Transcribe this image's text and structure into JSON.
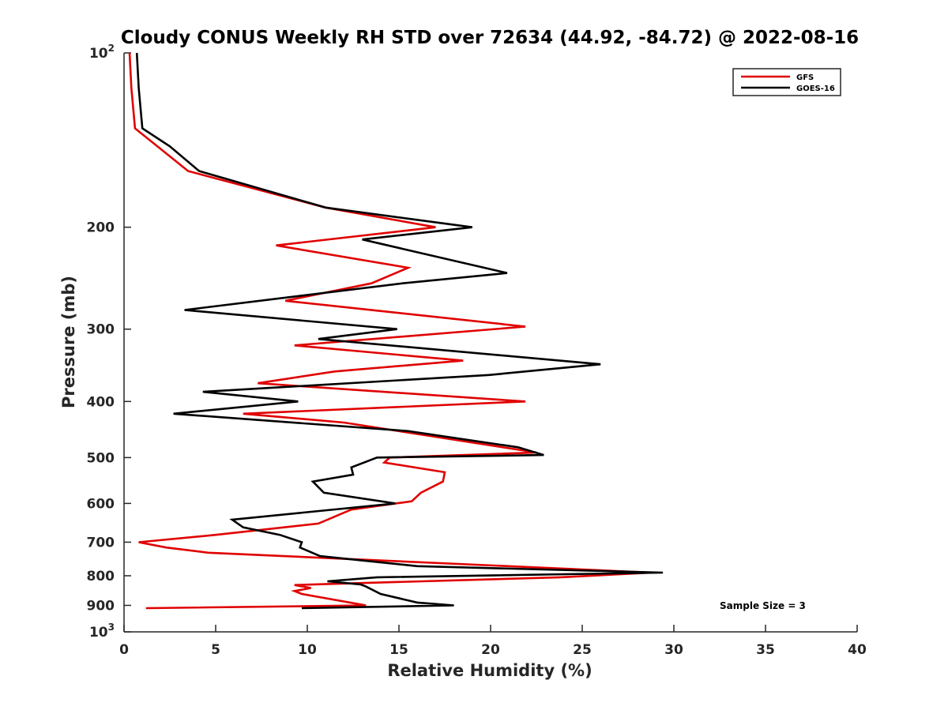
{
  "chart_data": {
    "type": "line",
    "title": "Cloudy CONUS Weekly RH STD over 72634 (44.92, -84.72) @ 2022-08-16",
    "xlabel": "Relative Humidity (%)",
    "ylabel": "Pressure (mb)",
    "xlim": [
      0,
      40
    ],
    "ylim": [
      100,
      1000
    ],
    "yscale": "log",
    "y_reversed": true,
    "grid": false,
    "legend_position": "top-right",
    "annotation": "Sample Size = 3",
    "x_ticks": [
      0,
      5,
      10,
      15,
      20,
      25,
      30,
      35,
      40
    ],
    "x_tick_labels": [
      "0",
      "5",
      "10",
      "15",
      "20",
      "25",
      "30",
      "35",
      "40"
    ],
    "y_ticks": [
      {
        "value": 100,
        "base": "10",
        "exp": "2"
      },
      {
        "value": 200,
        "label": "200"
      },
      {
        "value": 300,
        "label": "300"
      },
      {
        "value": 400,
        "label": "400"
      },
      {
        "value": 500,
        "label": "500"
      },
      {
        "value": 600,
        "label": "600"
      },
      {
        "value": 700,
        "label": "700"
      },
      {
        "value": 800,
        "label": "800"
      },
      {
        "value": 900,
        "label": "900"
      },
      {
        "value": 1000,
        "base": "10",
        "exp": "3"
      }
    ],
    "series": [
      {
        "name": "GFS",
        "color": "#e00000",
        "points": [
          [
            0.3,
            100
          ],
          [
            0.4,
            115
          ],
          [
            0.6,
            135
          ],
          [
            3.5,
            160
          ],
          [
            11,
            185
          ],
          [
            17,
            200
          ],
          [
            8.3,
            215
          ],
          [
            15.5,
            235
          ],
          [
            13.5,
            250
          ],
          [
            8.8,
            268
          ],
          [
            21.9,
            297
          ],
          [
            9.3,
            320
          ],
          [
            18.5,
            340
          ],
          [
            11.5,
            355
          ],
          [
            7.3,
            372
          ],
          [
            21.9,
            400
          ],
          [
            6.5,
            420
          ],
          [
            12,
            435
          ],
          [
            22.5,
            490
          ],
          [
            14.5,
            500
          ],
          [
            14.2,
            510
          ],
          [
            17.5,
            530
          ],
          [
            17.4,
            550
          ],
          [
            16.2,
            575
          ],
          [
            15.7,
            595
          ],
          [
            12.4,
            615
          ],
          [
            10.6,
            650
          ],
          [
            5,
            680
          ],
          [
            0.8,
            700
          ],
          [
            2.3,
            715
          ],
          [
            4.6,
            730
          ],
          [
            28.8,
            790
          ],
          [
            23.8,
            805
          ],
          [
            9.3,
            830
          ],
          [
            10.2,
            840
          ],
          [
            9.3,
            850
          ],
          [
            9.7,
            860
          ],
          [
            13.2,
            900
          ],
          [
            1.2,
            910
          ]
        ]
      },
      {
        "name": "GOES-16",
        "color": "#000000",
        "points": [
          [
            0.7,
            100
          ],
          [
            0.8,
            115
          ],
          [
            1,
            135
          ],
          [
            2.5,
            145
          ],
          [
            4.1,
            160
          ],
          [
            11,
            185
          ],
          [
            19,
            200
          ],
          [
            13,
            210
          ],
          [
            20.9,
            240
          ],
          [
            15.2,
            250
          ],
          [
            3.3,
            278
          ],
          [
            14.9,
            300
          ],
          [
            10.6,
            312
          ],
          [
            26,
            345
          ],
          [
            19.9,
            360
          ],
          [
            4.3,
            385
          ],
          [
            9.5,
            400
          ],
          [
            2.7,
            420
          ],
          [
            15.5,
            450
          ],
          [
            21.5,
            480
          ],
          [
            22.9,
            495
          ],
          [
            13.8,
            500
          ],
          [
            12.4,
            520
          ],
          [
            12.5,
            535
          ],
          [
            10.3,
            550
          ],
          [
            10.9,
            575
          ],
          [
            14.8,
            600
          ],
          [
            5.9,
            640
          ],
          [
            6.5,
            660
          ],
          [
            8.5,
            680
          ],
          [
            9.7,
            700
          ],
          [
            9.6,
            715
          ],
          [
            10.7,
            740
          ],
          [
            16,
            770
          ],
          [
            29.4,
            790
          ],
          [
            13.8,
            805
          ],
          [
            11.1,
            818
          ],
          [
            12.9,
            828
          ],
          [
            13.2,
            835
          ],
          [
            14,
            860
          ],
          [
            16,
            890
          ],
          [
            18,
            900
          ],
          [
            9.7,
            910
          ]
        ]
      }
    ]
  }
}
